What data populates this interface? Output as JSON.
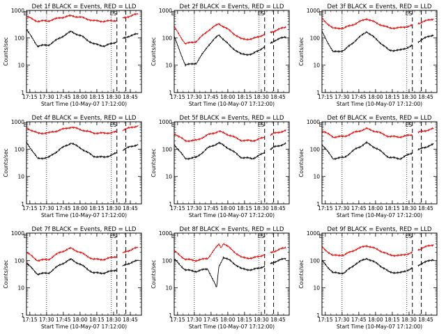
{
  "chart_data": [
    {
      "type": "line",
      "title": "Det 1f BLACK = Events, RED = LLD",
      "xlabel": "Start Time (10-May-07 17:12:00)",
      "ylabel": "Counts/sec",
      "xticks": [
        "17:15",
        "17:30",
        "17:45",
        "18:00",
        "18:15",
        "18:30",
        "18:45"
      ],
      "yticks": [
        "1",
        "10",
        "100",
        "1000"
      ],
      "ylim": [
        1,
        1000
      ],
      "yscale": "log",
      "xlim_minutes": [
        0,
        103
      ],
      "markers": {
        "E": 3,
        "S": 76,
        "gap": [
          81,
          82
        ]
      },
      "series": [
        {
          "color": "#000000",
          "x": [
            0,
            10,
            20,
            30,
            40,
            50,
            60,
            70,
            80,
            90,
            100
          ],
          "values": [
            200,
            50,
            55,
            100,
            170,
            110,
            60,
            50,
            70,
            110,
            140
          ]
        },
        {
          "color": "#e00000",
          "x": [
            0,
            10,
            20,
            30,
            40,
            50,
            60,
            70,
            80,
            90,
            100
          ],
          "values": [
            600,
            400,
            420,
            540,
            640,
            550,
            420,
            400,
            430,
            580,
            750
          ]
        }
      ]
    },
    {
      "type": "line",
      "title": "Det 2f BLACK = Events, RED = LLD",
      "xlabel": "Start Time (10-May-07 17:12:00)",
      "ylabel": "Counts/sec",
      "xticks": [
        "17:15",
        "17:30",
        "17:45",
        "18:00",
        "18:15",
        "18:30",
        "18:45"
      ],
      "yticks": [
        "1",
        "10",
        "100",
        "1000"
      ],
      "ylim": [
        1,
        1000
      ],
      "yscale": "log",
      "xlim_minutes": [
        0,
        103
      ],
      "markers": {
        "E": 3,
        "S": 76,
        "gap": [
          81,
          82
        ]
      },
      "series": [
        {
          "color": "#000000",
          "x": [
            0,
            10,
            20,
            30,
            40,
            50,
            60,
            70,
            80,
            90,
            100
          ],
          "values": [
            110,
            10,
            12,
            50,
            130,
            50,
            25,
            25,
            45,
            80,
            110
          ]
        },
        {
          "color": "#e00000",
          "x": [
            0,
            10,
            20,
            30,
            40,
            50,
            60,
            70,
            80,
            90,
            100
          ],
          "values": [
            250,
            60,
            75,
            180,
            330,
            180,
            90,
            90,
            130,
            180,
            250
          ]
        }
      ]
    },
    {
      "type": "line",
      "title": "Det 3f BLACK = Events, RED = LLD",
      "xlabel": "Start Time (10-May-07 17:12:00)",
      "ylabel": "Counts/sec",
      "xticks": [
        "17:15",
        "17:30",
        "17:45",
        "18:00",
        "18:15",
        "18:30",
        "18:45"
      ],
      "yticks": [
        "1",
        "10",
        "100",
        "1000"
      ],
      "ylim": [
        1,
        1000
      ],
      "yscale": "log",
      "xlim_minutes": [
        0,
        103
      ],
      "markers": {
        "E": 3,
        "S": 76,
        "gap": [
          81,
          82
        ]
      },
      "series": [
        {
          "color": "#000000",
          "x": [
            0,
            10,
            20,
            30,
            40,
            50,
            60,
            70,
            80,
            90,
            100
          ],
          "values": [
            170,
            30,
            35,
            80,
            170,
            80,
            35,
            35,
            50,
            90,
            130
          ]
        },
        {
          "color": "#e00000",
          "x": [
            0,
            10,
            20,
            30,
            40,
            50,
            60,
            70,
            80,
            90,
            100
          ],
          "values": [
            500,
            220,
            230,
            330,
            500,
            330,
            230,
            230,
            280,
            380,
            500
          ]
        }
      ]
    },
    {
      "type": "line",
      "title": "Det 4f BLACK = Events, RED = LLD",
      "xlabel": "Start Time (10-May-07 17:12:00)",
      "ylabel": "Counts/sec",
      "xticks": [
        "17:15",
        "17:30",
        "17:45",
        "18:00",
        "18:15",
        "18:30",
        "18:45"
      ],
      "yticks": [
        "1",
        "10",
        "100",
        "1000"
      ],
      "ylim": [
        1,
        1000
      ],
      "yscale": "log",
      "xlim_minutes": [
        0,
        103
      ],
      "markers": {
        "E": 3,
        "S": 76,
        "gap": [
          81,
          82
        ]
      },
      "series": [
        {
          "color": "#000000",
          "x": [
            0,
            10,
            20,
            30,
            40,
            50,
            60,
            70,
            80,
            90,
            100
          ],
          "values": [
            180,
            45,
            50,
            100,
            170,
            100,
            55,
            50,
            70,
            110,
            150
          ]
        },
        {
          "color": "#e00000",
          "x": [
            0,
            10,
            20,
            30,
            40,
            50,
            60,
            70,
            80,
            90,
            100
          ],
          "values": [
            600,
            380,
            390,
            500,
            640,
            500,
            390,
            380,
            420,
            560,
            720
          ]
        }
      ]
    },
    {
      "type": "line",
      "title": "Det 5f BLACK = Events, RED = LLD",
      "xlabel": "Start Time (10-May-07 17:12:00)",
      "ylabel": "Counts/sec",
      "xticks": [
        "17:15",
        "17:30",
        "17:45",
        "18:00",
        "18:15",
        "18:30",
        "18:45"
      ],
      "yticks": [
        "1",
        "10",
        "100",
        "1000"
      ],
      "ylim": [
        1,
        1000
      ],
      "yscale": "log",
      "xlim_minutes": [
        0,
        103
      ],
      "markers": {
        "E": 3,
        "S": 76,
        "gap": [
          81,
          82
        ]
      },
      "series": [
        {
          "color": "#000000",
          "x": [
            0,
            10,
            20,
            30,
            40,
            50,
            60,
            70,
            80,
            90,
            100
          ],
          "values": [
            150,
            45,
            50,
            110,
            170,
            100,
            50,
            45,
            70,
            120,
            160
          ]
        },
        {
          "color": "#e00000",
          "x": [
            0,
            10,
            20,
            30,
            40,
            50,
            60,
            70,
            80,
            90,
            100
          ],
          "values": [
            380,
            200,
            210,
            330,
            450,
            320,
            210,
            200,
            260,
            380,
            480
          ]
        }
      ]
    },
    {
      "type": "line",
      "title": "Det 6f BLACK = Events, RED = LLD",
      "xlabel": "Start Time (10-May-07 17:12:00)",
      "ylabel": "Counts/sec",
      "xticks": [
        "17:15",
        "17:30",
        "17:45",
        "18:00",
        "18:15",
        "18:30",
        "18:45"
      ],
      "yticks": [
        "1",
        "10",
        "100",
        "1000"
      ],
      "ylim": [
        1,
        1000
      ],
      "yscale": "log",
      "xlim_minutes": [
        0,
        103
      ],
      "markers": {
        "E": 3,
        "S": 76,
        "gap": [
          81,
          82
        ]
      },
      "series": [
        {
          "color": "#000000",
          "x": [
            0,
            10,
            20,
            30,
            40,
            50,
            60,
            70,
            80,
            90,
            100
          ],
          "values": [
            150,
            45,
            50,
            100,
            170,
            100,
            50,
            45,
            70,
            110,
            150
          ]
        },
        {
          "color": "#e00000",
          "x": [
            0,
            10,
            20,
            30,
            40,
            50,
            60,
            70,
            80,
            90,
            100
          ],
          "values": [
            480,
            280,
            290,
            420,
            560,
            420,
            290,
            280,
            330,
            450,
            560
          ]
        }
      ]
    },
    {
      "type": "line",
      "title": "Det 7f BLACK = Events, RED = LLD",
      "xlabel": "Start Time (10-May-07 17:12:00)",
      "ylabel": "Counts/sec",
      "xticks": [
        "17:15",
        "17:30",
        "17:45",
        "18:00",
        "18:15",
        "18:30",
        "18:45"
      ],
      "yticks": [
        "1",
        "10",
        "100",
        "1000"
      ],
      "ylim": [
        1,
        1000
      ],
      "yscale": "log",
      "xlim_minutes": [
        0,
        103
      ],
      "markers": {
        "E": 3,
        "S": 76,
        "gap": [
          81,
          82
        ]
      },
      "series": [
        {
          "color": "#000000",
          "x": [
            0,
            10,
            20,
            30,
            40,
            50,
            60,
            70,
            80,
            90,
            100
          ],
          "values": [
            80,
            32,
            35,
            70,
            110,
            65,
            35,
            35,
            45,
            75,
            100
          ]
        },
        {
          "color": "#e00000",
          "x": [
            0,
            10,
            20,
            30,
            40,
            50,
            60,
            70,
            80,
            90,
            100
          ],
          "values": [
            200,
            100,
            110,
            200,
            280,
            180,
            110,
            110,
            140,
            220,
            300
          ]
        }
      ]
    },
    {
      "type": "line",
      "title": "Det 8f BLACK = Events, RED = LLD",
      "xlabel": "Start Time (10-May-07 17:12:00)",
      "ylabel": "Counts/sec",
      "xticks": [
        "17:15",
        "17:30",
        "17:45",
        "18:00",
        "18:15",
        "18:30",
        "18:45"
      ],
      "yticks": [
        "1",
        "10",
        "100",
        "1000"
      ],
      "ylim": [
        1,
        1000
      ],
      "yscale": "log",
      "xlim_minutes": [
        0,
        103
      ],
      "markers": {
        "E": 3,
        "S": 76,
        "gap": [
          81,
          82
        ]
      },
      "series": [
        {
          "color": "#000000",
          "x": [
            0,
            10,
            20,
            30,
            38,
            40,
            44,
            50,
            60,
            70,
            80,
            90,
            100
          ],
          "values": [
            110,
            45,
            40,
            50,
            10,
            60,
            130,
            100,
            50,
            45,
            60,
            90,
            120
          ]
        },
        {
          "color": "#e00000",
          "x": [
            0,
            10,
            20,
            30,
            40,
            42,
            44,
            50,
            60,
            70,
            80,
            90,
            100
          ],
          "values": [
            220,
            110,
            100,
            120,
            400,
            300,
            420,
            280,
            130,
            120,
            160,
            220,
            300
          ]
        }
      ]
    },
    {
      "type": "line",
      "title": "Det 9f BLACK = Events, RED = LLD",
      "xlabel": "Start Time (10-May-07 17:12:00)",
      "ylabel": "Counts/sec",
      "xticks": [
        "17:15",
        "17:30",
        "17:45",
        "18:00",
        "18:15",
        "18:30",
        "18:45"
      ],
      "yticks": [
        "1",
        "10",
        "100",
        "1000"
      ],
      "ylim": [
        1,
        1000
      ],
      "yscale": "log",
      "xlim_minutes": [
        0,
        103
      ],
      "markers": {
        "E": 3,
        "S": 76,
        "gap": [
          81,
          82
        ]
      },
      "series": [
        {
          "color": "#000000",
          "x": [
            0,
            10,
            20,
            30,
            40,
            50,
            60,
            70,
            80,
            90,
            100
          ],
          "values": [
            100,
            35,
            35,
            75,
            120,
            75,
            38,
            35,
            50,
            80,
            110
          ]
        },
        {
          "color": "#e00000",
          "x": [
            0,
            10,
            20,
            30,
            40,
            50,
            60,
            70,
            80,
            90,
            100
          ],
          "values": [
            300,
            150,
            160,
            250,
            350,
            250,
            160,
            150,
            190,
            290,
            380
          ]
        }
      ]
    }
  ]
}
